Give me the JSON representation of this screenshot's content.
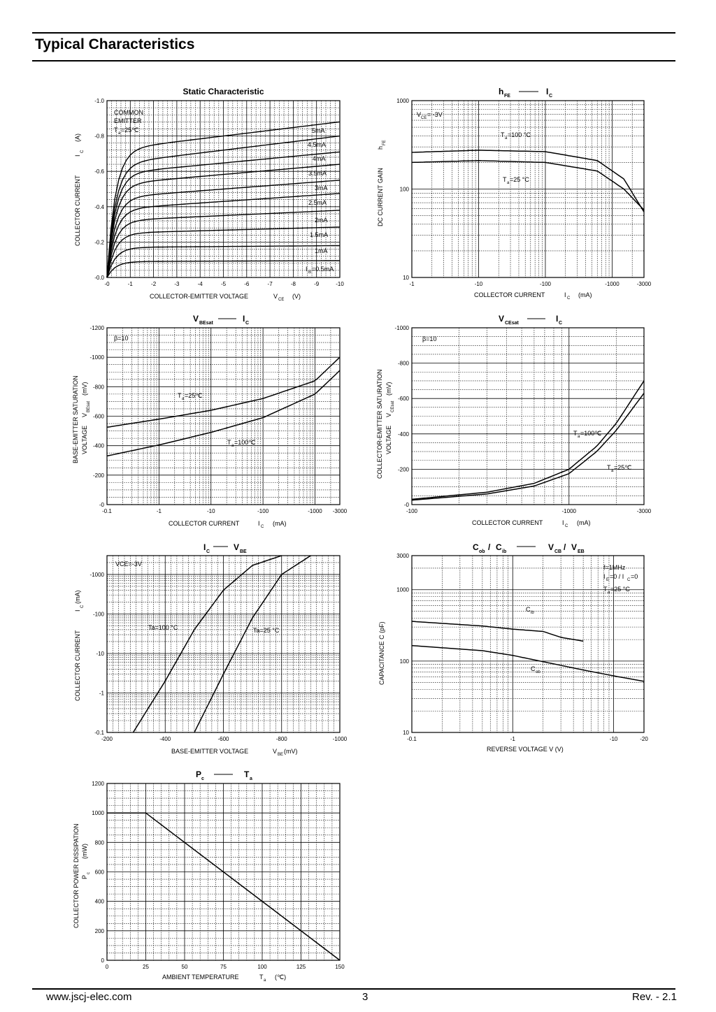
{
  "page": {
    "section_title": "Typical Characteristics",
    "website": "www.jscj-elec.com",
    "page_number": "3",
    "revision": "Rev. - 2.1"
  },
  "chart_data": [
    {
      "type": "line",
      "title": "Static Characteristic",
      "xlabel": "COLLECTOR-EMITTER VOLTAGE V_CE (V)",
      "ylabel": "COLLECTOR CURRENT I_C (A)",
      "x_ticks": [
        "-0",
        "-1",
        "-2",
        "-3",
        "-4",
        "-5",
        "-6",
        "-7",
        "-8",
        "-9",
        "-10"
      ],
      "y_ticks": [
        "-0.0",
        "-0.2",
        "-0.4",
        "-0.6",
        "-0.8",
        "-1.0"
      ],
      "xlim": [
        0,
        -10
      ],
      "ylim": [
        0,
        -1.0
      ],
      "annotation": [
        "COMMON",
        "EMITTER",
        "Ta=25℃"
      ],
      "series": [
        {
          "name": "IB=0.5mA",
          "sat": -0.09,
          "end": -0.095
        },
        {
          "name": "1mA",
          "sat": -0.17,
          "end": -0.18
        },
        {
          "name": "1.5mA",
          "sat": -0.25,
          "end": -0.285
        },
        {
          "name": "2mA",
          "sat": -0.32,
          "end": -0.38
        },
        {
          "name": "2.5mA",
          "sat": -0.385,
          "end": -0.475
        },
        {
          "name": "3mA",
          "sat": -0.45,
          "end": -0.55
        },
        {
          "name": "3.5mA",
          "sat": -0.525,
          "end": -0.64
        },
        {
          "name": "4mA",
          "sat": -0.585,
          "end": -0.71
        },
        {
          "name": "4.5mA",
          "sat": -0.64,
          "end": -0.8
        },
        {
          "name": "5mA",
          "sat": -0.72,
          "end": -0.88
        }
      ]
    },
    {
      "type": "line",
      "title": "hFE — IC",
      "xlabel": "COLLECTOR CURRENT IC (mA)",
      "ylabel": "DC CURRENT GAIN hFE",
      "x_ticks": [
        "-1",
        "-10",
        "-100",
        "-1000",
        "-3000"
      ],
      "y_ticks": [
        "10",
        "100",
        "1000"
      ],
      "x_scale": "log",
      "y_scale": "log",
      "annotation": "VCE= -3V",
      "series": [
        {
          "name": "Ta=100 °C",
          "points": [
            [
              -1,
              260
            ],
            [
              -10,
              275
            ],
            [
              -100,
              265
            ],
            [
              -600,
              210
            ],
            [
              -1500,
              130
            ],
            [
              -3000,
              55
            ]
          ]
        },
        {
          "name": "Ta=25 °C",
          "points": [
            [
              -1,
              200
            ],
            [
              -10,
              210
            ],
            [
              -100,
              200
            ],
            [
              -600,
              160
            ],
            [
              -1500,
              100
            ],
            [
              -3000,
              58
            ]
          ]
        }
      ]
    },
    {
      "type": "line",
      "title": "VBEsat — IC",
      "xlabel": "COLLECTOR CURRENT IC (mA)",
      "ylabel": "BASE-EMITTER SATURATION VOLTAGE VBEsat (mV)",
      "x_ticks": [
        "-0.1",
        "-1",
        "-10",
        "-100",
        "-1000",
        "-3000"
      ],
      "y_ticks": [
        "-0",
        "-200",
        "-400",
        "-600",
        "-800",
        "-1000",
        "-1200"
      ],
      "x_scale": "log",
      "ylim": [
        0,
        -1200
      ],
      "annotation": "β=10",
      "series": [
        {
          "name": "Ta=25℃",
          "points": [
            [
              -0.1,
              -525
            ],
            [
              -1,
              -580
            ],
            [
              -10,
              -640
            ],
            [
              -100,
              -720
            ],
            [
              -1000,
              -840
            ],
            [
              -3000,
              -1000
            ]
          ]
        },
        {
          "name": "Ta=100℃",
          "points": [
            [
              -0.1,
              -330
            ],
            [
              -1,
              -405
            ],
            [
              -10,
              -490
            ],
            [
              -100,
              -590
            ],
            [
              -1000,
              -750
            ],
            [
              -3000,
              -910
            ]
          ]
        }
      ]
    },
    {
      "type": "line",
      "title": "VCEsat — IC",
      "xlabel": "COLLECTOR CURRENT IC (mA)",
      "ylabel": "COLLECTOR-EMITTER SATURATION VOLTAGE VCEsat (mV)",
      "x_ticks": [
        "-100",
        "-1000",
        "-3000"
      ],
      "y_ticks": [
        "-0",
        "-200",
        "-400",
        "-600",
        "-800",
        "-1000"
      ],
      "x_scale": "log",
      "ylim": [
        0,
        -1000
      ],
      "annotation": "β=10",
      "series": [
        {
          "name": "Ta=100℃",
          "points": [
            [
              -100,
              -30
            ],
            [
              -300,
              -70
            ],
            [
              -600,
              -120
            ],
            [
              -1000,
              -200
            ],
            [
              -1500,
              -330
            ],
            [
              -2000,
              -460
            ],
            [
              -3000,
              -700
            ]
          ]
        },
        {
          "name": "Ta=25℃",
          "points": [
            [
              -100,
              -25
            ],
            [
              -300,
              -60
            ],
            [
              -600,
              -105
            ],
            [
              -1000,
              -175
            ],
            [
              -1500,
              -300
            ],
            [
              -2000,
              -420
            ],
            [
              -3000,
              -630
            ]
          ]
        }
      ]
    },
    {
      "type": "line",
      "title": "IC — VBE",
      "xlabel": "BASE-EMITTER VOLTAGE VBE(mV)",
      "ylabel": "COLLECTOR CURRENT IC (mA)",
      "x_ticks": [
        "-200",
        "-400",
        "-600",
        "-800",
        "-1000"
      ],
      "y_ticks": [
        "-0.1",
        "-1",
        "-10",
        "-100",
        "-1000"
      ],
      "y_scale": "log",
      "annotation": "VCE=-3V",
      "series": [
        {
          "name": "Ta=100 °C",
          "points": [
            [
              -290,
              -0.1
            ],
            [
              -400,
              -2
            ],
            [
              -500,
              -40
            ],
            [
              -600,
              -400
            ],
            [
              -700,
              -1700
            ],
            [
              -800,
              -3000
            ]
          ]
        },
        {
          "name": "Ta=25 °C",
          "points": [
            [
              -500,
              -0.1
            ],
            [
              -600,
              -3
            ],
            [
              -700,
              -80
            ],
            [
              -800,
              -1000
            ],
            [
              -900,
              -3000
            ]
          ]
        }
      ]
    },
    {
      "type": "line",
      "title": "Cob / Cib — VCB / VEB",
      "xlabel": "REVERSE VOLTAGE V (V)",
      "ylabel": "CAPACITANCE C (pF)",
      "x_ticks": [
        "-0.1",
        "-1",
        "-10",
        "-20"
      ],
      "y_ticks": [
        "10",
        "100",
        "1000",
        "3000"
      ],
      "x_scale": "log",
      "y_scale": "log",
      "annotation": [
        "f=1MHz",
        "IE=0 / IC=0",
        "Ta=25 °C"
      ],
      "series": [
        {
          "name": "Cib",
          "points": [
            [
              -0.1,
              360
            ],
            [
              -0.5,
              310
            ],
            [
              -1,
              280
            ],
            [
              -2,
              260
            ],
            [
              -3,
              215
            ],
            [
              -5,
              190
            ]
          ]
        },
        {
          "name": "Cob",
          "points": [
            [
              -0.1,
              165
            ],
            [
              -0.5,
              140
            ],
            [
              -1,
              120
            ],
            [
              -2,
              98
            ],
            [
              -5,
              75
            ],
            [
              -10,
              62
            ],
            [
              -20,
              52
            ]
          ]
        }
      ]
    },
    {
      "type": "line",
      "title": "Pc — Ta",
      "xlabel": "AMBIENT TEMPERATURE Ta (℃)",
      "ylabel": "COLLECTOR POWER DISSIPATION Pc (mW)",
      "x_ticks": [
        "0",
        "25",
        "50",
        "75",
        "100",
        "125",
        "150"
      ],
      "y_ticks": [
        "0",
        "200",
        "400",
        "600",
        "800",
        "1000",
        "1200"
      ],
      "xlim": [
        0,
        150
      ],
      "ylim": [
        0,
        1200
      ],
      "series": [
        {
          "name": "",
          "points": [
            [
              0,
              1000
            ],
            [
              25,
              1000
            ],
            [
              150,
              0
            ]
          ]
        }
      ]
    }
  ]
}
